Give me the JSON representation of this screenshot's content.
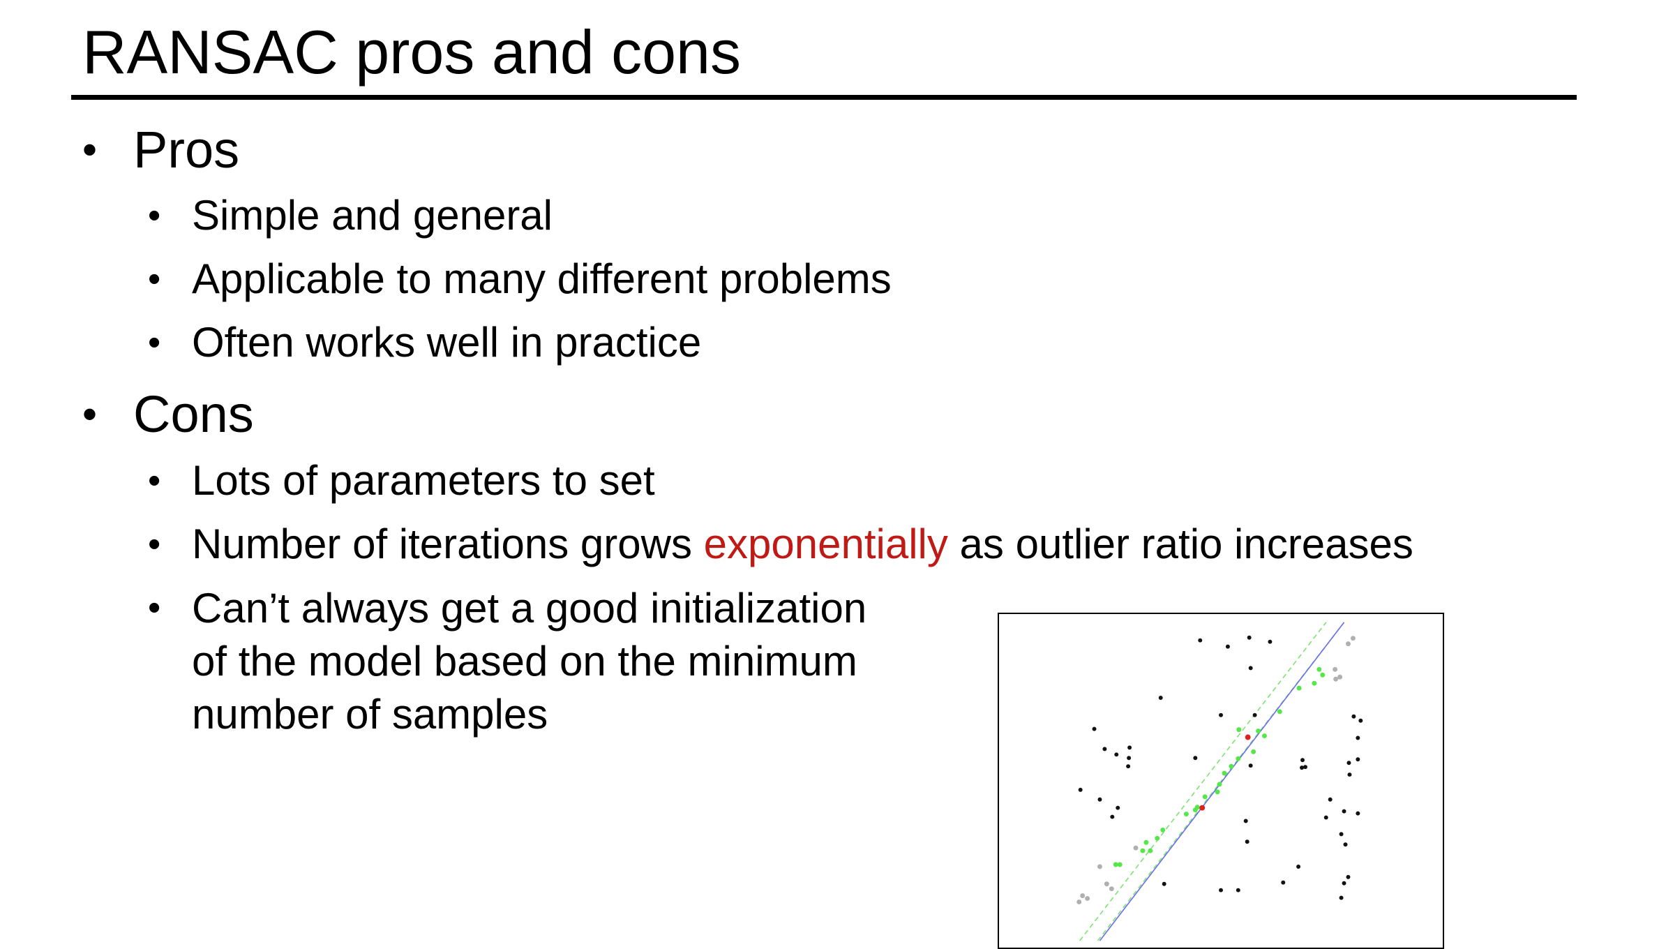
{
  "slide": {
    "title": "RANSAC pros and cons",
    "bullet_glyph": "•",
    "pros": {
      "heading": "Pros",
      "items": [
        "Simple and general",
        "Applicable to many different problems",
        "Often works well in practice"
      ]
    },
    "cons": {
      "heading": "Cons",
      "items": [
        {
          "text": "Lots of parameters to set"
        },
        {
          "before": "Number of iterations grows ",
          "highlight": "exponentially",
          "after": " as outlier ratio increases"
        },
        {
          "text": "Can’t always get a good initialization of the model based on the minimum number of samples"
        }
      ]
    },
    "colors": {
      "highlight": "#c01a17",
      "inlier": "#55e64a",
      "sample": "#e0201c",
      "outlier": "#111111",
      "excluded": "#b0b0b0",
      "fit_line": "#6b6bf0",
      "threshold_band": "#7be36f"
    }
  }
}
